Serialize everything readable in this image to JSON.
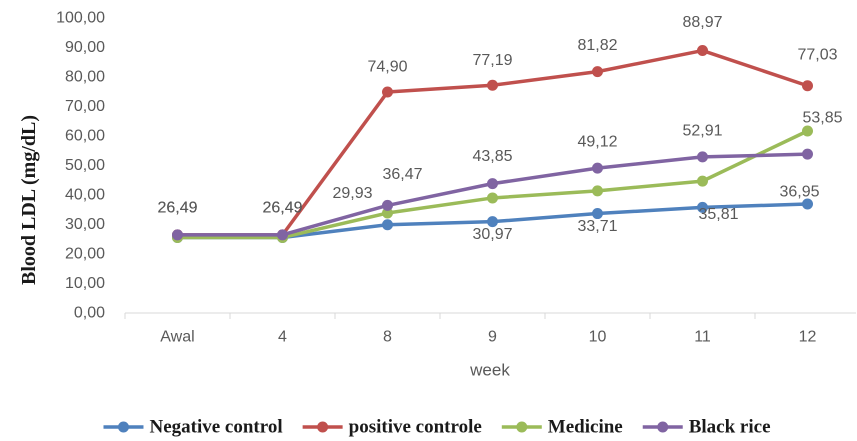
{
  "chart_data": {
    "type": "line",
    "xlabel": "week",
    "ylabel": "Blood LDL (mg/dL)",
    "categories": [
      "Awal",
      "4",
      "8",
      "9",
      "10",
      "11",
      "12"
    ],
    "ylim": [
      0,
      100
    ],
    "yticks": [
      {
        "value": 0,
        "label": "0,00"
      },
      {
        "value": 10,
        "label": "10,00"
      },
      {
        "value": 20,
        "label": "20,00"
      },
      {
        "value": 30,
        "label": "30,00"
      },
      {
        "value": 40,
        "label": "40,00"
      },
      {
        "value": 50,
        "label": "50,00"
      },
      {
        "value": 60,
        "label": "60,00"
      },
      {
        "value": 70,
        "label": "70,00"
      },
      {
        "value": 80,
        "label": "80,00"
      },
      {
        "value": 90,
        "label": "90,00"
      },
      {
        "value": 100,
        "label": "100,00"
      }
    ],
    "grid": false,
    "legend_position": "bottom",
    "series": [
      {
        "name": "Negative control",
        "color": "#4F81BD",
        "values": [
          25.6,
          25.6,
          29.93,
          30.97,
          33.71,
          35.81,
          36.95
        ],
        "data_labels": [
          "",
          "",
          "29,93",
          "30,97",
          "33,71",
          "35,81",
          "36,95"
        ]
      },
      {
        "name": "positive controle",
        "color": "#C0504D",
        "values": [
          26.49,
          26.49,
          74.9,
          77.19,
          81.82,
          88.97,
          77.03
        ],
        "data_labels": [
          "26,49",
          "26,49",
          "74,90",
          "77,19",
          "81,82",
          "88,97",
          "77,03"
        ]
      },
      {
        "name": "Medicine",
        "color": "#9BBB59",
        "values": [
          25.6,
          25.6,
          33.9,
          39.0,
          41.4,
          44.7,
          61.7
        ],
        "data_labels": [
          "",
          "",
          "",
          "",
          "",
          "",
          ""
        ]
      },
      {
        "name": "Black rice",
        "color": "#8064A2",
        "values": [
          26.49,
          26.49,
          36.47,
          43.85,
          49.12,
          52.91,
          53.85
        ],
        "data_labels": [
          "26,49",
          "26,49",
          "36,47",
          "43,85",
          "49,12",
          "52,91",
          "53,85"
        ]
      }
    ]
  }
}
